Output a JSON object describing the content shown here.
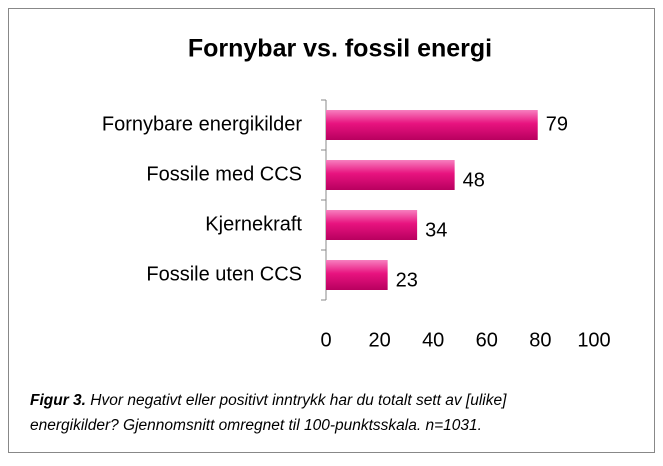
{
  "chart_data": {
    "type": "hbar",
    "title": "Fornybar vs. fossil energi",
    "categories": [
      "Fornybare energikilder",
      "Fossile med CCS",
      "Kjernekraft",
      "Fossile uten CCS"
    ],
    "values": [
      79,
      48,
      34,
      23
    ],
    "color": "#e8137f",
    "xlim": [
      0,
      100
    ],
    "xticks": [
      0,
      20,
      40,
      60,
      80,
      100
    ],
    "caption": {
      "label": "Figur 3.",
      "lines": [
        "Hvor negativt eller positivt inntrykk har du totalt sett av [ulike]",
        "energikilder? Gjennomsnitt omregnet til 100-punktsskala. n=1031."
      ]
    }
  }
}
